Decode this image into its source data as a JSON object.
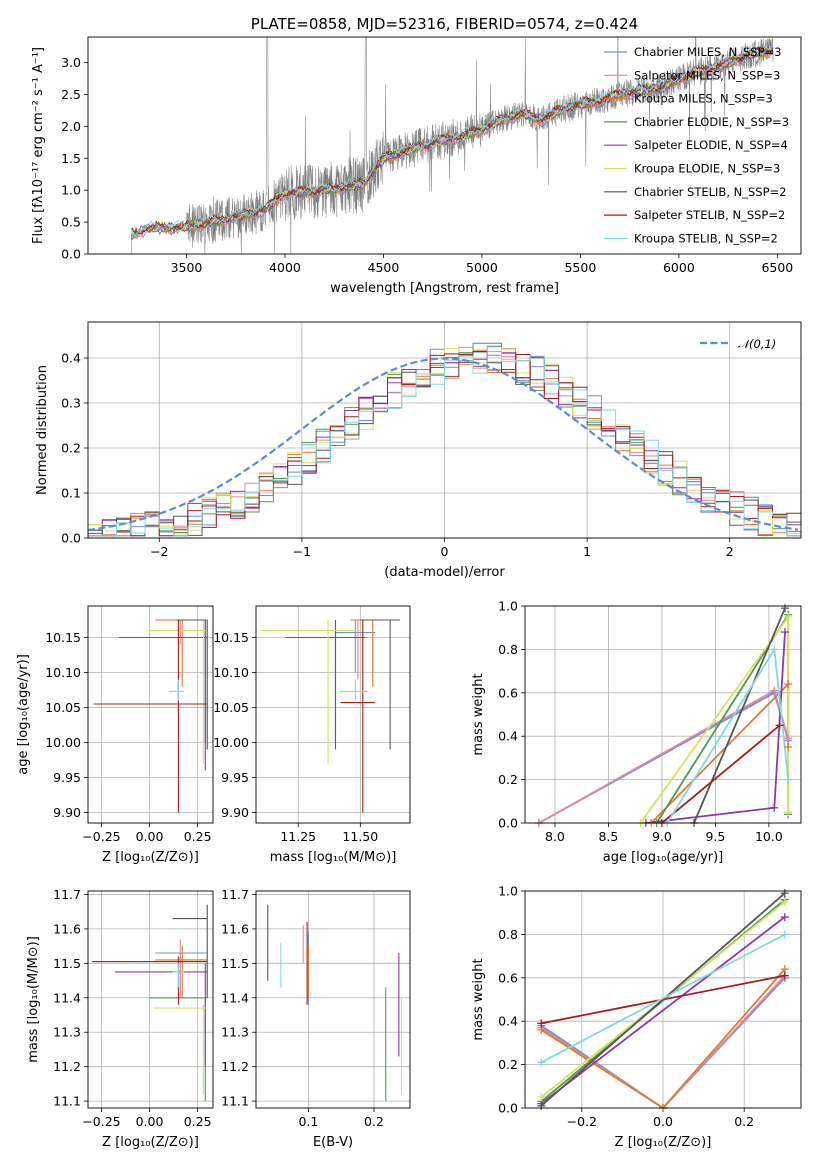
{
  "colors": {
    "chabrier_miles": "#6f8fd8",
    "salpeter_miles": "#e2889a",
    "kroupa_miles": "#e07a30",
    "chabrier_elodie": "#4f9a4f",
    "salpeter_elodie": "#8e35b0",
    "kroupa_elodie": "#d8e060",
    "chabrier_stelib": "#555555",
    "salpeter_stelib": "#a81c1c",
    "kroupa_stelib": "#80d8e0",
    "spectrum": "#808080",
    "normal": "#5b8bd6",
    "grid": "#b0b0b0"
  },
  "chart_data": [
    {
      "id": "spectrum",
      "type": "line",
      "title": "PLATE=0858, MJD=52316, FIBERID=0574, z=0.424",
      "xlabel": "wavelength [Angstrom, rest frame]",
      "ylabel": "Flux [fλ10⁻¹⁷ erg cm⁻² s⁻¹ A⁻¹]",
      "xlim": [
        3000,
        6620
      ],
      "ylim": [
        0,
        3.4
      ],
      "xticks": [
        "3500",
        "4000",
        "4500",
        "5000",
        "5500",
        "6000",
        "6500"
      ],
      "yticks": [
        "0.0",
        "0.5",
        "1.0",
        "1.5",
        "2.0",
        "2.5",
        "3.0"
      ],
      "grid": false,
      "legend_position": "top-right",
      "legend": [
        "Chabrier MILES, N_SSP=3",
        "Salpeter MILES, N_SSP=3",
        "Kroupa MILES, N_SSP=3",
        "Chabrier ELODIE, N_SSP=3",
        "Salpeter ELODIE, N_SSP=4",
        "Kroupa ELODIE, N_SSP=3",
        "Chabrier STELIB, N_SSP=2",
        "Salpeter STELIB, N_SSP=2",
        "Kroupa STELIB, N_SSP=2"
      ],
      "data_anchor_x": [
        3220,
        3300,
        3500,
        3700,
        3900,
        4000,
        4200,
        4400,
        4500,
        4700,
        4900,
        5000,
        5100,
        5200,
        5300,
        5400,
        5500,
        5600,
        5700,
        5800,
        5900,
        6000,
        6100,
        6200,
        6300,
        6400,
        6480
      ],
      "data_anchor_y": [
        0.3,
        0.4,
        0.42,
        0.55,
        0.7,
        0.95,
        1.0,
        1.1,
        1.5,
        1.7,
        1.85,
        1.95,
        2.1,
        2.2,
        2.1,
        2.25,
        2.35,
        2.4,
        2.5,
        2.55,
        2.6,
        2.75,
        2.85,
        2.95,
        3.05,
        3.15,
        3.2
      ]
    },
    {
      "id": "residuals",
      "type": "line",
      "xlabel": "(data-model)/error",
      "ylabel": "Normed distribution",
      "xlim": [
        -2.5,
        2.5
      ],
      "ylim": [
        0,
        0.48
      ],
      "xticks": [
        "−2",
        "−1",
        "0",
        "1",
        "2"
      ],
      "yticks": [
        "0.0",
        "0.1",
        "0.2",
        "0.3",
        "0.4"
      ],
      "grid": true,
      "legend_position": "top-right",
      "legend": [
        "𝒩(0,1)"
      ],
      "bin_width": 0.1
    },
    {
      "id": "age_vs_Z",
      "type": "scatter",
      "xlabel": "Z [log₁₀(Z/Z⊙)]",
      "ylabel": "age  [log₁₀(age/yr)]",
      "xlim": [
        -0.32,
        0.33
      ],
      "ylim": [
        9.885,
        10.195
      ],
      "xticks": [
        "−0.25",
        "0.00",
        "0.25"
      ],
      "yticks": [
        "9.90",
        "9.95",
        "10.00",
        "10.05",
        "10.10",
        "10.15"
      ],
      "grid": true
    },
    {
      "id": "age_vs_mass",
      "type": "scatter",
      "xlabel": "mass [log₁₀(M/M⊙)]",
      "ylabel": "",
      "xlim": [
        11.08,
        11.7
      ],
      "ylim": [
        9.885,
        10.195
      ],
      "xticks": [
        "11.25",
        "11.50"
      ],
      "yticks": [
        "9.90",
        "9.95",
        "10.00",
        "10.05",
        "10.10",
        "10.15"
      ],
      "grid": true
    },
    {
      "id": "weight_vs_age",
      "type": "line",
      "xlabel": "age  [log₁₀(age/yr)]",
      "ylabel": "mass weight",
      "xlim": [
        7.72,
        10.3
      ],
      "ylim": [
        0,
        1
      ],
      "xticks": [
        "8.0",
        "8.5",
        "9.0",
        "9.5",
        "10.0"
      ],
      "yticks": [
        "0.0",
        "0.2",
        "0.4",
        "0.6",
        "0.8",
        "1.0"
      ],
      "grid": true,
      "series": [
        {
          "name": "Chabrier MILES",
          "color": "#6f8fd8",
          "x": [
            7.85,
            10.05,
            10.18
          ],
          "y": [
            0.0,
            0.6,
            0.38
          ]
        },
        {
          "name": "Salpeter MILES",
          "color": "#e2889a",
          "x": [
            7.85,
            10.05,
            10.18
          ],
          "y": [
            0.0,
            0.61,
            0.39
          ]
        },
        {
          "name": "Kroupa MILES",
          "color": "#e07a30",
          "x": [
            8.9,
            10.18,
            10.18
          ],
          "y": [
            0.0,
            0.64,
            0.35
          ]
        },
        {
          "name": "Chabrier ELODIE",
          "color": "#4f9a4f",
          "x": [
            8.95,
            10.18,
            10.18
          ],
          "y": [
            0.0,
            0.96,
            0.04
          ]
        },
        {
          "name": "Salpeter ELODIE",
          "color": "#8e35b0",
          "x": [
            8.85,
            10.05,
            10.15
          ],
          "y": [
            0.0,
            0.07,
            0.88
          ]
        },
        {
          "name": "Kroupa ELODIE",
          "color": "#d8e060",
          "x": [
            8.8,
            10.18,
            10.18
          ],
          "y": [
            0.0,
            0.95,
            0.05
          ]
        },
        {
          "name": "Chabrier STELIB",
          "color": "#555555",
          "x": [
            9.3,
            10.15
          ],
          "y": [
            0.0,
            0.99
          ]
        },
        {
          "name": "Salpeter STELIB",
          "color": "#a81c1c",
          "x": [
            9.0,
            10.1
          ],
          "y": [
            0.0,
            0.45
          ]
        },
        {
          "name": "Kroupa STELIB",
          "color": "#80d8e0",
          "x": [
            9.05,
            10.05,
            10.18
          ],
          "y": [
            0.0,
            0.8,
            0.2
          ]
        }
      ]
    },
    {
      "id": "mass_vs_Z",
      "type": "scatter",
      "xlabel": "Z [log₁₀(Z/Z⊙)]",
      "ylabel": "mass [log₁₀(M/M⊙)]",
      "xlim": [
        -0.32,
        0.33
      ],
      "ylim": [
        11.08,
        11.71
      ],
      "xticks": [
        "−0.25",
        "0.00",
        "0.25"
      ],
      "yticks": [
        "11.1",
        "11.2",
        "11.3",
        "11.4",
        "11.5",
        "11.6",
        "11.7"
      ],
      "grid": true
    },
    {
      "id": "mass_vs_ebv",
      "type": "scatter",
      "xlabel": "E(B-V)",
      "ylabel": "",
      "xlim": [
        0.02,
        0.255
      ],
      "ylim": [
        11.08,
        11.71
      ],
      "xticks": [
        "0.1",
        "0.2"
      ],
      "yticks": [
        "11.1",
        "11.2",
        "11.3",
        "11.4",
        "11.5",
        "11.6",
        "11.7"
      ],
      "grid": true
    },
    {
      "id": "weight_vs_Z",
      "type": "line",
      "xlabel": "Z [log₁₀(Z/Z⊙)]",
      "ylabel": "mass weight",
      "xlim": [
        -0.34,
        0.34
      ],
      "ylim": [
        0,
        1
      ],
      "xticks": [
        "−0.2",
        "0.0",
        "0.2"
      ],
      "yticks": [
        "0.0",
        "0.2",
        "0.4",
        "0.6",
        "0.8",
        "1.0"
      ],
      "grid": true,
      "series": [
        {
          "name": "Chabrier MILES",
          "color": "#6f8fd8",
          "x": [
            -0.3,
            0.0,
            0.3
          ],
          "y": [
            0.38,
            0.0,
            0.6
          ]
        },
        {
          "name": "Salpeter MILES",
          "color": "#e2889a",
          "x": [
            -0.3,
            0.0,
            0.3
          ],
          "y": [
            0.37,
            0.0,
            0.61
          ]
        },
        {
          "name": "Kroupa MILES",
          "color": "#e07a30",
          "x": [
            -0.3,
            0.0,
            0.3
          ],
          "y": [
            0.36,
            0.0,
            0.64
          ]
        },
        {
          "name": "Chabrier ELODIE",
          "color": "#4f9a4f",
          "x": [
            -0.3,
            0.3
          ],
          "y": [
            0.03,
            0.96
          ]
        },
        {
          "name": "Salpeter ELODIE",
          "color": "#8e35b0",
          "x": [
            -0.3,
            0.3
          ],
          "y": [
            0.02,
            0.88
          ]
        },
        {
          "name": "Kroupa ELODIE",
          "color": "#d8e060",
          "x": [
            -0.3,
            0.3
          ],
          "y": [
            0.05,
            0.95
          ]
        },
        {
          "name": "Chabrier STELIB",
          "color": "#555555",
          "x": [
            -0.3,
            0.3
          ],
          "y": [
            0.01,
            0.99
          ]
        },
        {
          "name": "Salpeter STELIB",
          "color": "#a81c1c",
          "x": [
            -0.3,
            0.3
          ],
          "y": [
            0.39,
            0.61
          ]
        },
        {
          "name": "Kroupa STELIB",
          "color": "#80d8e0",
          "x": [
            -0.3,
            0.3
          ],
          "y": [
            0.21,
            0.8
          ]
        }
      ]
    }
  ]
}
